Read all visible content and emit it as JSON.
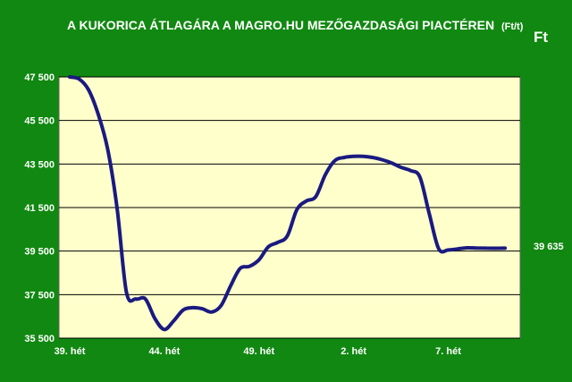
{
  "colors": {
    "background": "#118811",
    "plot_area": "#ffffcc",
    "line": "#1a1a80",
    "text": "#ffffff",
    "grid": "#000000"
  },
  "chart_data": {
    "type": "line",
    "title": "A KUKORICA ÁTLAGÁRA A MAGRO.HU MEZŐGAZDASÁGI PIACTÉREN",
    "title_unit": "(Ft/t)",
    "unit_label": "Ft",
    "ylim": [
      35500,
      47500
    ],
    "yticks": [
      "47 500",
      "45 500",
      "43 500",
      "41 500",
      "39 500",
      "37 500",
      "35 500"
    ],
    "ytick_values": [
      47500,
      45500,
      43500,
      41500,
      39500,
      37500,
      35500
    ],
    "xtick_labels": [
      "39. hét",
      "44. hét",
      "49. hét",
      "2. hét",
      "7. hét"
    ],
    "xtick_index": [
      0,
      5,
      10,
      15,
      20
    ],
    "grid": true,
    "series": [
      {
        "x_index": [
          0,
          0.5,
          1,
          1.5,
          2,
          2.5,
          3,
          3.5,
          4,
          4.5,
          5,
          5.5,
          6,
          6.5,
          7,
          7.5,
          8,
          8.5,
          9,
          9.5,
          10,
          10.5,
          11,
          11.5,
          12,
          12.5,
          13,
          13.5,
          14,
          14.5,
          15,
          15.5,
          16,
          16.5,
          17,
          17.5,
          18,
          18.5,
          19,
          19.5,
          20,
          20.5,
          21,
          21.5,
          22,
          22.5,
          23
        ],
        "values": [
          47500,
          47400,
          46900,
          45800,
          44200,
          41500,
          37600,
          37300,
          37300,
          36400,
          35900,
          36300,
          36800,
          36900,
          36850,
          36700,
          37000,
          37900,
          38700,
          38800,
          39100,
          39700,
          39900,
          40200,
          41400,
          41800,
          42000,
          43000,
          43650,
          43800,
          43850,
          43850,
          43800,
          43700,
          43550,
          43350,
          43200,
          42900,
          41200,
          39600,
          39550,
          39600,
          39650,
          39640,
          39635,
          39630,
          39635
        ]
      }
    ],
    "end_label": "39 635"
  }
}
